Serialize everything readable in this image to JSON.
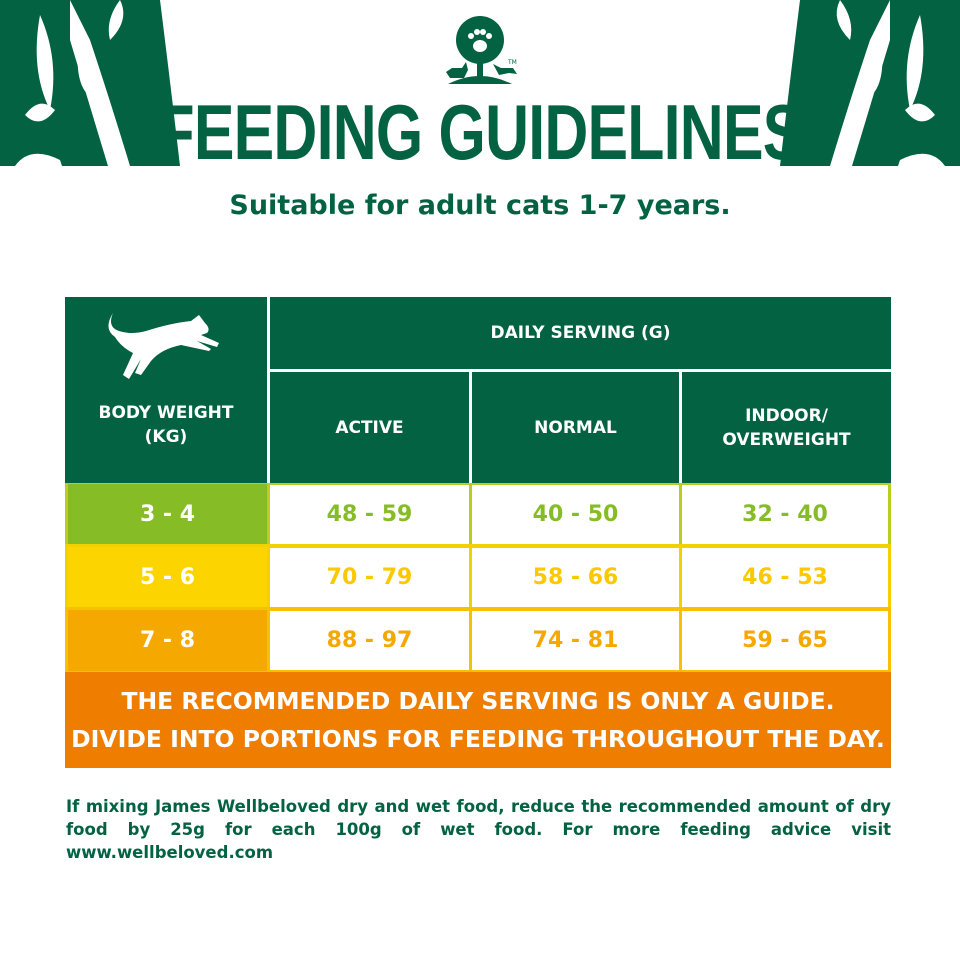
{
  "brand": {
    "logo_text": "TM",
    "name": "James Wellbeloved"
  },
  "colors": {
    "dark_green": "#036241",
    "lime": "#86bc25",
    "yellow": "#fcd500",
    "orange": "#f5a800",
    "banner": "#ee7d00"
  },
  "title": "FEEDING GUIDELINES",
  "subtitle": "Suitable for adult cats 1-7 years.",
  "table": {
    "icon": "leaping-cat-icon",
    "body_weight_header": "BODY WEIGHT (KG)",
    "daily_serving_header": "DAILY SERVING (G)",
    "columns": [
      "ACTIVE",
      "NORMAL",
      "INDOOR/ OVERWEIGHT"
    ],
    "rows": [
      {
        "weight": "3 - 4",
        "values": [
          "48 - 59",
          "40 - 50",
          "32 - 40"
        ],
        "color": "#86bc25"
      },
      {
        "weight": "5 - 6",
        "values": [
          "70 - 79",
          "58 - 66",
          "46 - 53"
        ],
        "color": "#fcd500"
      },
      {
        "weight": "7 - 8",
        "values": [
          "88 - 97",
          "74 - 81",
          "59 - 65"
        ],
        "color": "#f5a800"
      }
    ]
  },
  "banner": {
    "line1": "THE RECOMMENDED DAILY SERVING IS ONLY A GUIDE.",
    "line2": "DIVIDE INTO PORTIONS FOR FEEDING THROUGHOUT THE DAY."
  },
  "note": "If mixing James Wellbeloved dry and wet food, reduce the recommended amount of dry food by 25g for each 100g of wet food. For more feeding advice visit www.wellbeloved.com"
}
